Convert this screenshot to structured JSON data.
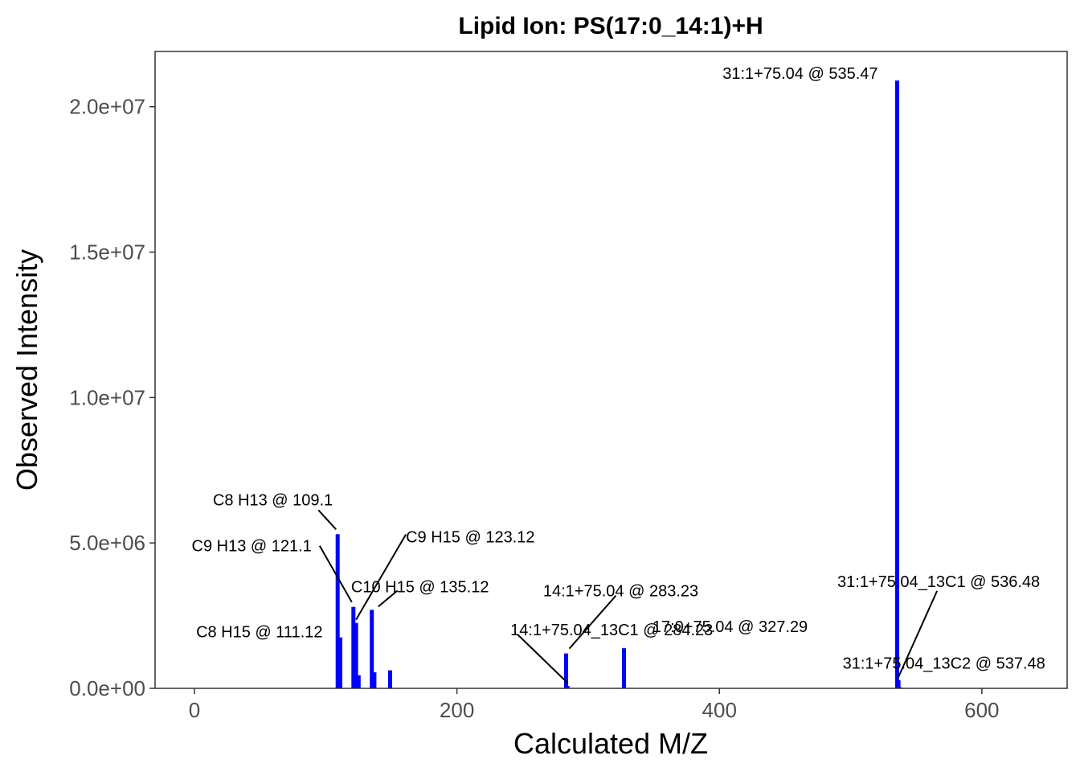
{
  "chart_data": {
    "type": "bar",
    "title": "Lipid Ion: PS(17:0_14:1)+H",
    "xlabel": "Calculated M/Z",
    "ylabel": "Observed Intensity",
    "xlim": [
      -30,
      665
    ],
    "ylim": [
      0,
      21900000
    ],
    "x_ticks": [
      0,
      200,
      400,
      600
    ],
    "x_tick_labels": [
      "0",
      "200",
      "400",
      "600"
    ],
    "y_ticks": [
      0,
      5000000,
      10000000,
      15000000,
      20000000
    ],
    "y_tick_labels": [
      "0.0e+00",
      "5.0e+06",
      "1.0e+07",
      "1.5e+07",
      "2.0e+07"
    ],
    "grid": false,
    "bar_color": "#0000ff",
    "peaks": [
      {
        "mz": 109.1,
        "intensity": 5300000
      },
      {
        "mz": 111.12,
        "intensity": 1750000
      },
      {
        "mz": 121.1,
        "intensity": 2800000
      },
      {
        "mz": 123.12,
        "intensity": 2250000
      },
      {
        "mz": 125.1,
        "intensity": 450000
      },
      {
        "mz": 135.12,
        "intensity": 2700000
      },
      {
        "mz": 137.1,
        "intensity": 550000
      },
      {
        "mz": 149.1,
        "intensity": 620000
      },
      {
        "mz": 283.23,
        "intensity": 1200000
      },
      {
        "mz": 284.23,
        "intensity": 80000
      },
      {
        "mz": 327.29,
        "intensity": 1380000
      },
      {
        "mz": 535.47,
        "intensity": 20900000
      },
      {
        "mz": 536.48,
        "intensity": 280000
      },
      {
        "mz": 537.48,
        "intensity": 40000
      }
    ],
    "annotations": [
      {
        "text": "31:1+75.04 @ 535.47",
        "mz": 535.47,
        "intensity": 20900000
      },
      {
        "text": "C8 H13 @ 109.1",
        "mz": 109.1,
        "intensity": 5300000
      },
      {
        "text": "C9 H15 @ 123.12",
        "mz": 123.12,
        "intensity": 2250000
      },
      {
        "text": "C9 H13 @ 121.1",
        "mz": 121.1,
        "intensity": 2800000
      },
      {
        "text": "C10 H15 @ 135.12",
        "mz": 135.12,
        "intensity": 2700000
      },
      {
        "text": "14:1+75.04 @ 283.23",
        "mz": 283.23,
        "intensity": 1200000
      },
      {
        "text": "31:1+75.04_13C1 @ 536.48",
        "mz": 536.48,
        "intensity": 280000
      },
      {
        "text": "C8 H15 @ 111.12",
        "mz": 111.12,
        "intensity": 1750000
      },
      {
        "text": "14:1+75.04_13C1 @ 284.23",
        "mz": 284.23,
        "intensity": 80000
      },
      {
        "text": "17:0+75.04 @ 327.29",
        "mz": 327.29,
        "intensity": 1380000
      },
      {
        "text": "31:1+75.04_13C2 @ 537.48",
        "mz": 537.48,
        "intensity": 40000
      }
    ]
  }
}
